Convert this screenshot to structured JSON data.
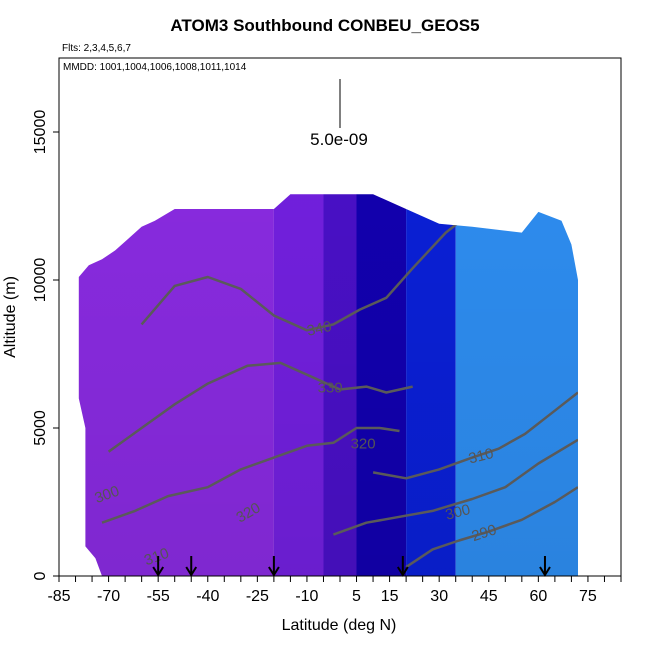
{
  "header": {
    "title": "ATOM3 Southbound CONBEU_GEOS5",
    "flights": "Flts: 2,3,4,5,6,7",
    "mmdd": "MMDD: 1001,1004,1006,1008,1011,1014"
  },
  "chart_data": {
    "type": "heatmap",
    "xlabel": "Latitude (deg N)",
    "ylabel": "Altitude (m)",
    "xlim": [
      -85,
      85
    ],
    "ylim": [
      0,
      17500
    ],
    "x_ticks": [
      -85,
      -80,
      -75,
      -70,
      -65,
      -60,
      -55,
      -50,
      -45,
      -40,
      -35,
      -30,
      -25,
      -20,
      -15,
      -10,
      -5,
      0,
      5,
      10,
      15,
      20,
      25,
      30,
      35,
      40,
      45,
      50,
      55,
      60,
      65,
      70,
      75,
      80,
      85
    ],
    "x_tick_labels": [
      {
        "value": -85,
        "label": "-85"
      },
      {
        "value": -70,
        "label": "-70"
      },
      {
        "value": -55,
        "label": "-55"
      },
      {
        "value": -40,
        "label": "-40"
      },
      {
        "value": -25,
        "label": "-25"
      },
      {
        "value": -10,
        "label": "-10"
      },
      {
        "value": 5,
        "label": "5"
      },
      {
        "value": 15,
        "label": "15"
      },
      {
        "value": 30,
        "label": "30"
      },
      {
        "value": 45,
        "label": "45"
      },
      {
        "value": 60,
        "label": "60"
      },
      {
        "value": 75,
        "label": "75"
      }
    ],
    "y_ticks": [
      0,
      5000,
      10000,
      15000
    ],
    "y_tick_labels": [
      "0",
      "5000",
      "10000",
      "15000"
    ],
    "scale_bar_label": "5.0e-09",
    "colors": {
      "violet": "#8a2be2",
      "purple": "#7320e0",
      "indigo": "#4a10c8",
      "navy": "#1200b0",
      "blue": "#0a20d8",
      "lightblue": "#2e8ef2",
      "contour": "#5a5a5a"
    },
    "coverage_top": [
      [
        -79,
        10100
      ],
      [
        -76,
        10500
      ],
      [
        -72,
        10700
      ],
      [
        -68,
        11000
      ],
      [
        -64,
        11400
      ],
      [
        -60,
        11800
      ],
      [
        -56,
        12000
      ],
      [
        -50,
        12400
      ],
      [
        -40,
        12400
      ],
      [
        -30,
        12400
      ],
      [
        -20,
        12400
      ],
      [
        -15,
        12900
      ],
      [
        -5,
        12900
      ],
      [
        10,
        12900
      ],
      [
        20,
        12400
      ],
      [
        30,
        11900
      ],
      [
        40,
        11800
      ],
      [
        55,
        11600
      ],
      [
        60,
        12300
      ],
      [
        67,
        12000
      ],
      [
        70,
        11200
      ],
      [
        72,
        10000
      ],
      [
        72,
        0
      ]
    ],
    "coverage_left": [
      [
        -79,
        10100
      ],
      [
        -79,
        6000
      ],
      [
        -77,
        5000
      ],
      [
        -77,
        1000
      ],
      [
        -74,
        600
      ],
      [
        -72,
        0
      ]
    ],
    "color_bands": [
      {
        "from": -80,
        "to": -20,
        "color": "violet"
      },
      {
        "from": -20,
        "to": -5,
        "color": "purple"
      },
      {
        "from": -5,
        "to": 5,
        "color": "indigo"
      },
      {
        "from": 5,
        "to": 20,
        "color": "navy"
      },
      {
        "from": 20,
        "to": 35,
        "color": "blue"
      },
      {
        "from": 35,
        "to": 72,
        "color": "lightblue"
      }
    ],
    "contours": [
      {
        "level": 290,
        "points": [
          [
            20,
            300
          ],
          [
            28,
            900
          ],
          [
            36,
            1200
          ],
          [
            45,
            1500
          ],
          [
            55,
            1900
          ],
          [
            65,
            2500
          ],
          [
            72,
            3000
          ]
        ]
      },
      {
        "level": 300,
        "points": [
          [
            -2,
            1400
          ],
          [
            8,
            1800
          ],
          [
            18,
            2000
          ],
          [
            28,
            2200
          ],
          [
            40,
            2600
          ],
          [
            50,
            3000
          ],
          [
            60,
            3800
          ],
          [
            72,
            4600
          ]
        ]
      },
      {
        "level": 310,
        "points": [
          [
            10,
            3500
          ],
          [
            20,
            3300
          ],
          [
            30,
            3600
          ],
          [
            40,
            4000
          ],
          [
            48,
            4300
          ],
          [
            56,
            4800
          ],
          [
            64,
            5500
          ],
          [
            72,
            6200
          ]
        ]
      },
      {
        "level": 320,
        "points": [
          [
            -72,
            1800
          ],
          [
            -62,
            2200
          ],
          [
            -52,
            2700
          ],
          [
            -40,
            3000
          ],
          [
            -30,
            3600
          ],
          [
            -20,
            4000
          ],
          [
            -10,
            4400
          ],
          [
            -2,
            4500
          ],
          [
            5,
            5000
          ],
          [
            12,
            5000
          ],
          [
            18,
            4900
          ]
        ]
      },
      {
        "level": 330,
        "points": [
          [
            -70,
            4200
          ],
          [
            -60,
            5000
          ],
          [
            -50,
            5800
          ],
          [
            -40,
            6500
          ],
          [
            -28,
            7100
          ],
          [
            -18,
            7200
          ],
          [
            -8,
            6700
          ],
          [
            0,
            6300
          ],
          [
            8,
            6400
          ],
          [
            14,
            6200
          ],
          [
            22,
            6400
          ]
        ]
      },
      {
        "level": 340,
        "points": [
          [
            -60,
            8500
          ],
          [
            -50,
            9800
          ],
          [
            -40,
            10100
          ],
          [
            -30,
            9700
          ],
          [
            -20,
            8800
          ],
          [
            -10,
            8300
          ],
          [
            -2,
            8500
          ],
          [
            6,
            9000
          ],
          [
            14,
            9400
          ],
          [
            22,
            10400
          ],
          [
            32,
            11600
          ],
          [
            40,
            12300
          ]
        ]
      }
    ],
    "contour_labels": [
      {
        "text": "290",
        "x": 44,
        "y": 1300,
        "rot": -18
      },
      {
        "text": "300",
        "x": 36,
        "y": 2000,
        "rot": -14
      },
      {
        "text": "310",
        "x": 43,
        "y": 3900,
        "rot": -14
      },
      {
        "text": "320",
        "x": 7,
        "y": 4300,
        "rot": 0
      },
      {
        "text": "330",
        "x": -3,
        "y": 6200,
        "rot": 0
      },
      {
        "text": "340",
        "x": -6,
        "y": 8200,
        "rot": -12
      },
      {
        "text": "320",
        "x": -27,
        "y": 2000,
        "rot": -30
      },
      {
        "text": "310",
        "x": -55,
        "y": 500,
        "rot": -20
      },
      {
        "text": "300",
        "x": -70,
        "y": 2600,
        "rot": -20
      }
    ],
    "arrow_latitudes": [
      -55,
      -45,
      -20,
      19,
      62
    ]
  }
}
